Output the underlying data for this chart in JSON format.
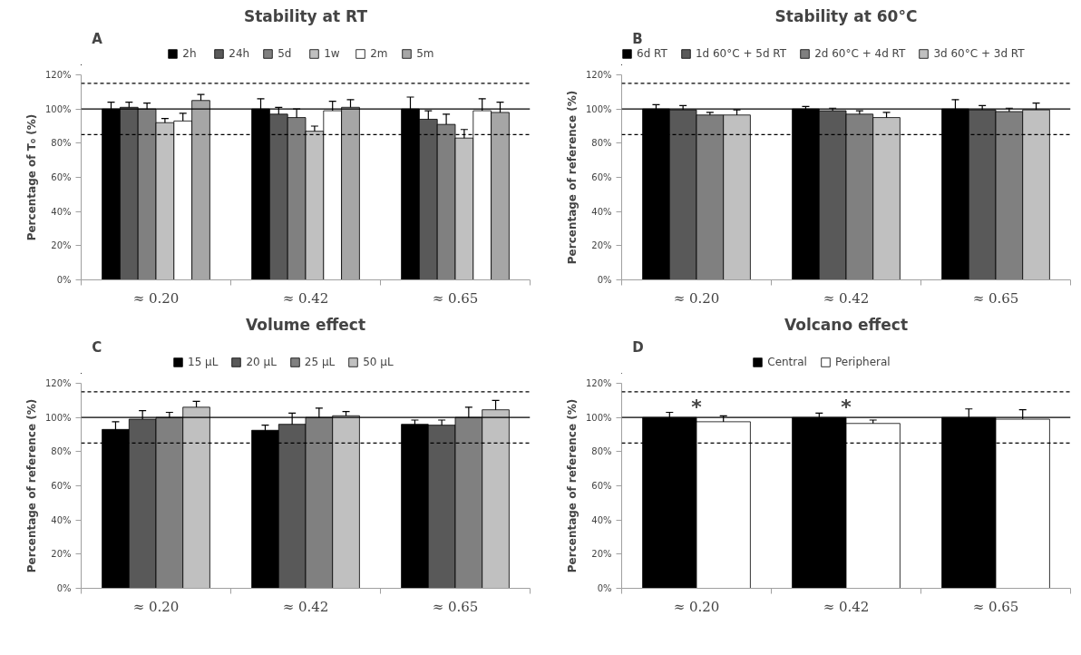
{
  "chart_data": [
    {
      "type": "bar",
      "title": "Stability at RT",
      "ylabel": "Percentage of T₀ (%)",
      "annotations": [
        "A"
      ],
      "categories": [
        "≈ 0.20",
        "≈ 0.42",
        "≈ 0.65"
      ],
      "series": [
        {
          "name": "2h",
          "color": "#000000",
          "values": [
            100,
            100,
            100
          ],
          "errors": [
            4,
            6,
            7
          ]
        },
        {
          "name": "24h",
          "color": "#595959",
          "values": [
            101,
            97,
            94
          ],
          "errors": [
            3,
            4,
            5
          ]
        },
        {
          "name": "5d",
          "color": "#808080",
          "values": [
            100,
            95,
            91
          ],
          "errors": [
            3.5,
            5,
            6
          ]
        },
        {
          "name": "1w",
          "color": "#c0c0c0",
          "values": [
            92,
            87,
            83
          ],
          "errors": [
            2.5,
            3,
            5
          ]
        },
        {
          "name": "2m",
          "color": "#ffffff",
          "values": [
            93,
            99,
            99
          ],
          "errors": [
            4.5,
            5.5,
            7
          ]
        },
        {
          "name": "5m",
          "color": "#a6a6a6",
          "values": [
            105,
            101,
            98
          ],
          "errors": [
            3.5,
            4.5,
            6
          ]
        }
      ],
      "ylim": [
        0,
        120
      ],
      "yticks": [
        {
          "value": 0,
          "label": "0%"
        },
        {
          "value": 20,
          "label": "20%"
        },
        {
          "value": 40,
          "label": "40%"
        },
        {
          "value": 60,
          "label": "60%"
        },
        {
          "value": 80,
          "label": "80%"
        },
        {
          "value": 100,
          "label": "100%"
        },
        {
          "value": 120,
          "label": "120%"
        }
      ],
      "ref_lines": [
        {
          "axis": "y",
          "value": 100,
          "line_style": "solid"
        },
        {
          "axis": "y",
          "value": 115,
          "line_style": "dashed"
        },
        {
          "axis": "y",
          "value": 85,
          "line_style": "dashed"
        }
      ],
      "legend": "top",
      "grid": false
    },
    {
      "type": "bar",
      "title": "Stability at 60°C",
      "ylabel": "Percentage of reference (%)",
      "annotations": [
        "B"
      ],
      "categories": [
        "≈ 0.20",
        "≈ 0.42",
        "≈ 0.65"
      ],
      "series": [
        {
          "name": "6d RT",
          "color": "#000000",
          "values": [
            100,
            100,
            100
          ],
          "errors": [
            2.5,
            1.5,
            5.5
          ]
        },
        {
          "name": "1d 60°C + 5d RT",
          "color": "#595959",
          "values": [
            99.5,
            99,
            99.5
          ],
          "errors": [
            2.5,
            1.5,
            2.5
          ]
        },
        {
          "name": "2d 60°C + 4d RT",
          "color": "#808080",
          "values": [
            96.5,
            97,
            98.5
          ],
          "errors": [
            1.5,
            2,
            2
          ]
        },
        {
          "name": "3d 60°C + 3d RT",
          "color": "#c0c0c0",
          "values": [
            96.5,
            95,
            99.5
          ],
          "errors": [
            3,
            3,
            4
          ]
        }
      ],
      "ylim": [
        0,
        120
      ],
      "yticks": [
        {
          "value": 0,
          "label": "0%"
        },
        {
          "value": 20,
          "label": "20%"
        },
        {
          "value": 40,
          "label": "40%"
        },
        {
          "value": 60,
          "label": "60%"
        },
        {
          "value": 80,
          "label": "80%"
        },
        {
          "value": 100,
          "label": "100%"
        },
        {
          "value": 120,
          "label": "120%"
        }
      ],
      "ref_lines": [
        {
          "axis": "y",
          "value": 100,
          "line_style": "solid"
        },
        {
          "axis": "y",
          "value": 115,
          "line_style": "dashed"
        },
        {
          "axis": "y",
          "value": 85,
          "line_style": "dashed"
        }
      ],
      "legend": "top",
      "grid": false
    },
    {
      "type": "bar",
      "title": "Volume effect",
      "ylabel": "Percentage of reference (%)",
      "annotations": [
        "C"
      ],
      "categories": [
        "≈ 0.20",
        "≈ 0.42",
        "≈ 0.65"
      ],
      "series": [
        {
          "name": "15 µL",
          "color": "#000000",
          "values": [
            93,
            92.5,
            96
          ],
          "errors": [
            4.5,
            3,
            2.5
          ]
        },
        {
          "name": "20 µL",
          "color": "#595959",
          "values": [
            99,
            96,
            95.5
          ],
          "errors": [
            5,
            6.5,
            3
          ]
        },
        {
          "name": "25 µL",
          "color": "#808080",
          "values": [
            100,
            100,
            100
          ],
          "errors": [
            3,
            5.5,
            6
          ]
        },
        {
          "name": "50 µL",
          "color": "#c0c0c0",
          "values": [
            106,
            101,
            104.5
          ],
          "errors": [
            3.5,
            2.5,
            5.5
          ]
        }
      ],
      "ylim": [
        0,
        120
      ],
      "yticks": [
        {
          "value": 0,
          "label": "0%"
        },
        {
          "value": 20,
          "label": "20%"
        },
        {
          "value": 40,
          "label": "40%"
        },
        {
          "value": 60,
          "label": "60%"
        },
        {
          "value": 80,
          "label": "80%"
        },
        {
          "value": 100,
          "label": "100%"
        },
        {
          "value": 120,
          "label": "120%"
        }
      ],
      "ref_lines": [
        {
          "axis": "y",
          "value": 100,
          "line_style": "solid"
        },
        {
          "axis": "y",
          "value": 115,
          "line_style": "dashed"
        },
        {
          "axis": "y",
          "value": 85,
          "line_style": "dashed"
        }
      ],
      "legend": "top",
      "grid": false
    },
    {
      "type": "bar",
      "title": "Volcano effect",
      "ylabel": "Percentage of reference (%)",
      "annotations": [
        "D",
        {
          "text": "*",
          "x": "≈ 0.20",
          "y": 100
        },
        {
          "text": "*",
          "x": "≈ 0.42",
          "y": 100
        }
      ],
      "categories": [
        "≈ 0.20",
        "≈ 0.42",
        "≈ 0.65"
      ],
      "series": [
        {
          "name": "Central",
          "color": "#000000",
          "values": [
            100,
            100,
            100
          ],
          "errors": [
            3,
            2.5,
            5
          ]
        },
        {
          "name": "Peripheral",
          "color": "#ffffff",
          "values": [
            97.5,
            96.5,
            99
          ],
          "errors": [
            3.5,
            2,
            5.5
          ]
        }
      ],
      "ylim": [
        0,
        120
      ],
      "yticks": [
        {
          "value": 0,
          "label": "0%"
        },
        {
          "value": 20,
          "label": "20%"
        },
        {
          "value": 40,
          "label": "40%"
        },
        {
          "value": 60,
          "label": "60%"
        },
        {
          "value": 80,
          "label": "80%"
        },
        {
          "value": 100,
          "label": "100%"
        },
        {
          "value": 120,
          "label": "120%"
        }
      ],
      "ref_lines": [
        {
          "axis": "y",
          "value": 100,
          "line_style": "solid"
        },
        {
          "axis": "y",
          "value": 115,
          "line_style": "dashed"
        },
        {
          "axis": "y",
          "value": 85,
          "line_style": "dashed"
        }
      ],
      "legend": "top",
      "grid": false
    }
  ]
}
